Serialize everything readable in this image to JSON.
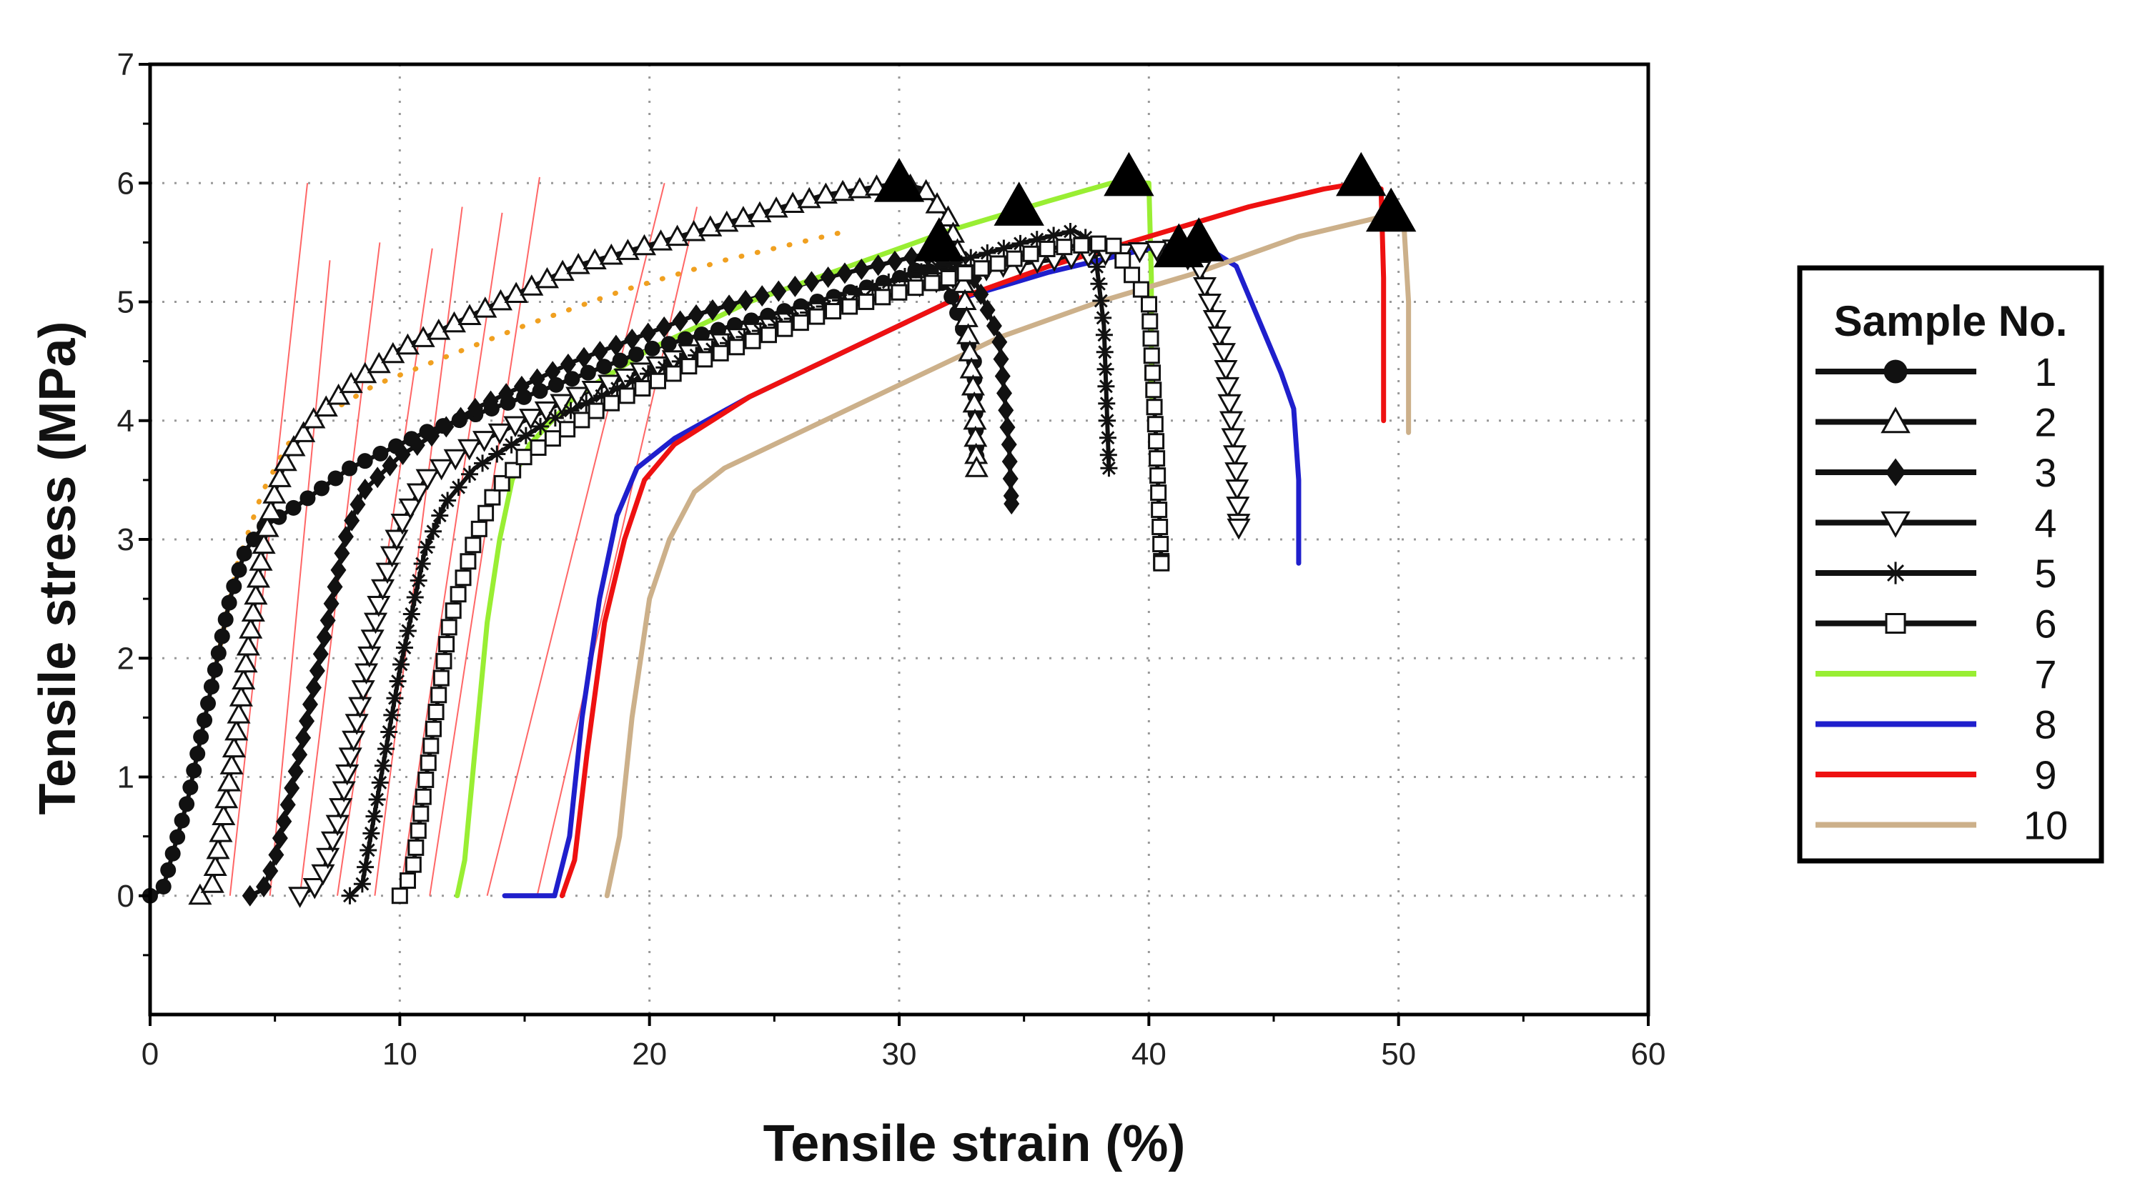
{
  "chart_data": {
    "type": "line",
    "title": "",
    "xlabel": "Tensile strain (%)",
    "ylabel": "Tensile stress (MPa)",
    "xlim": [
      0,
      60
    ],
    "ylim": [
      -1,
      7
    ],
    "xticks": [
      0,
      10,
      20,
      30,
      40,
      50,
      60
    ],
    "yticks": [
      0,
      1,
      2,
      3,
      4,
      5,
      6,
      7
    ],
    "grid": true,
    "legend": {
      "title": "Sample No.",
      "position": "right"
    },
    "series": [
      {
        "name": "1",
        "color": "#111111",
        "marker": "circle",
        "x": [
          0,
          0.5,
          1.5,
          2.5,
          3.2,
          3.8,
          4.5,
          6,
          8,
          11,
          15,
          20,
          25,
          30,
          31,
          32,
          33,
          33.1
        ],
        "y": [
          0,
          0.05,
          0.8,
          1.8,
          2.5,
          2.9,
          3.1,
          3.3,
          3.6,
          3.9,
          4.2,
          4.6,
          4.9,
          5.2,
          5.3,
          5.1,
          4.5,
          3.7
        ]
      },
      {
        "name": "2",
        "color": "#111111",
        "marker": "triangle-up-open",
        "x": [
          2,
          2.5,
          3.2,
          4.0,
          4.5,
          5.0,
          5.5,
          6.5,
          8,
          10,
          13,
          17,
          22,
          27,
          30,
          31,
          32,
          32.5,
          33,
          33.1
        ],
        "y": [
          0,
          0.1,
          1.0,
          2.2,
          2.9,
          3.4,
          3.7,
          4.0,
          4.3,
          4.6,
          4.9,
          5.3,
          5.6,
          5.9,
          6.0,
          5.95,
          5.7,
          5.3,
          4.2,
          3.6
        ]
      },
      {
        "name": "3",
        "color": "#111111",
        "marker": "diamond",
        "x": [
          4,
          4.5,
          5.0,
          6.0,
          7.0,
          7.8,
          8.5,
          10,
          13,
          17,
          22,
          27,
          31,
          33,
          34,
          34.4,
          34.5
        ],
        "y": [
          0,
          0.05,
          0.3,
          1.2,
          2.2,
          3.0,
          3.4,
          3.7,
          4.1,
          4.5,
          4.9,
          5.2,
          5.4,
          5.2,
          4.7,
          3.8,
          3.3
        ]
      },
      {
        "name": "4",
        "color": "#111111",
        "marker": "triangle-down-open",
        "x": [
          6,
          6.8,
          7.5,
          8.5,
          9.2,
          10,
          11,
          13,
          17,
          22,
          28,
          34,
          38,
          41,
          42,
          43,
          43.5,
          43.6
        ],
        "y": [
          0,
          0.1,
          0.6,
          1.7,
          2.5,
          3.1,
          3.5,
          3.8,
          4.2,
          4.6,
          5.0,
          5.3,
          5.4,
          5.45,
          5.3,
          4.6,
          3.6,
          3.1
        ]
      },
      {
        "name": "5",
        "color": "#111111",
        "marker": "star",
        "x": [
          8,
          8.5,
          9.0,
          10,
          11,
          11.8,
          13,
          16,
          20,
          25,
          30,
          35,
          37,
          37.8,
          38.2,
          38.4
        ],
        "y": [
          0,
          0.1,
          0.7,
          1.9,
          2.9,
          3.3,
          3.6,
          4.0,
          4.4,
          4.8,
          5.2,
          5.5,
          5.6,
          5.5,
          4.8,
          3.6
        ]
      },
      {
        "name": "6",
        "color": "#111111",
        "marker": "square-open",
        "x": [
          10,
          10.5,
          11.2,
          12,
          13,
          13.8,
          15,
          18,
          22,
          27,
          32,
          36,
          38.5,
          40,
          40.3,
          40.5
        ],
        "y": [
          0,
          0.2,
          1.2,
          2.3,
          3.0,
          3.4,
          3.7,
          4.1,
          4.5,
          4.9,
          5.2,
          5.45,
          5.5,
          5.0,
          3.8,
          2.8
        ]
      },
      {
        "name": "7",
        "color": "#99ee33",
        "marker": "none",
        "x": [
          12.3,
          12.6,
          13.0,
          13.5,
          14.0,
          14.5,
          15.2,
          17,
          20,
          24,
          28,
          32,
          36,
          38.5,
          39.2,
          40,
          40.1,
          40.1
        ],
        "y": [
          0,
          0.3,
          1.2,
          2.3,
          3.0,
          3.5,
          3.8,
          4.2,
          4.6,
          5.0,
          5.3,
          5.6,
          5.85,
          6.0,
          6.0,
          6.0,
          5.2,
          4.2
        ]
      },
      {
        "name": "8",
        "color": "#1f1fcc",
        "marker": "none",
        "x": [
          14.2,
          16.2,
          16.8,
          17.3,
          18.0,
          18.7,
          19.5,
          21,
          24,
          28,
          32,
          36,
          40,
          42,
          43.5,
          44.5,
          45.3,
          45.8,
          46,
          46
        ],
        "y": [
          0,
          0,
          0.5,
          1.5,
          2.5,
          3.2,
          3.6,
          3.85,
          4.2,
          4.6,
          5.0,
          5.25,
          5.45,
          5.5,
          5.3,
          4.8,
          4.4,
          4.1,
          3.5,
          2.8
        ]
      },
      {
        "name": "9",
        "color": "#ee1111",
        "marker": "none",
        "x": [
          16.5,
          17.0,
          17.5,
          18.2,
          19.0,
          19.8,
          21,
          24,
          28,
          32,
          36,
          40,
          44,
          47,
          48.4,
          49.3,
          49.4,
          49.4
        ],
        "y": [
          0,
          0.3,
          1.2,
          2.3,
          3.0,
          3.5,
          3.8,
          4.2,
          4.6,
          5.0,
          5.3,
          5.55,
          5.8,
          5.95,
          6.0,
          5.95,
          5.2,
          4.0
        ]
      },
      {
        "name": "10",
        "color": "#ccb08a",
        "marker": "none",
        "x": [
          18.3,
          18.8,
          19.3,
          20.0,
          20.8,
          21.8,
          23,
          26,
          30,
          34,
          38,
          42,
          46,
          49,
          49.8,
          50.2,
          50.4,
          50.4
        ],
        "y": [
          0,
          0.5,
          1.5,
          2.5,
          3.0,
          3.4,
          3.6,
          3.9,
          4.3,
          4.7,
          5.0,
          5.25,
          5.55,
          5.7,
          5.75,
          5.7,
          5.0,
          3.9
        ]
      }
    ],
    "annotations": [
      {
        "name": "orange-dotted-envelope",
        "color": "#f0a020",
        "style": "dotted",
        "x": [
          0.5,
          1.5,
          2.5,
          3.5,
          4.5,
          5.5,
          7,
          9,
          12,
          15,
          19,
          23,
          27,
          28
        ],
        "y": [
          0.1,
          0.8,
          1.8,
          2.8,
          3.4,
          3.8,
          4.05,
          4.3,
          4.55,
          4.8,
          5.1,
          5.35,
          5.55,
          5.6
        ]
      },
      {
        "name": "thin-red-tangent-lines",
        "color": "#ff6666",
        "lines": [
          {
            "x": [
              3.2,
              6.3
            ],
            "y": [
              0,
              6.0
            ]
          },
          {
            "x": [
              4.8,
              7.2
            ],
            "y": [
              0,
              5.35
            ]
          },
          {
            "x": [
              6.0,
              9.2
            ],
            "y": [
              0,
              5.5
            ]
          },
          {
            "x": [
              7.5,
              11.3
            ],
            "y": [
              0,
              5.45
            ]
          },
          {
            "x": [
              9.0,
              12.5
            ],
            "y": [
              0,
              5.8
            ]
          },
          {
            "x": [
              10.0,
              14.1
            ],
            "y": [
              0,
              5.75
            ]
          },
          {
            "x": [
              11.2,
              15.6
            ],
            "y": [
              0,
              6.05
            ]
          },
          {
            "x": [
              13.5,
              20.6
            ],
            "y": [
              0,
              6.0
            ]
          },
          {
            "x": [
              15.5,
              21.9
            ],
            "y": [
              0,
              5.8
            ]
          }
        ]
      },
      {
        "name": "failure-markers",
        "marker": "triangle-up-filled",
        "color": "#000000",
        "points": [
          {
            "x": 30,
            "y": 6.0
          },
          {
            "x": 31.6,
            "y": 5.5
          },
          {
            "x": 34.8,
            "y": 5.8
          },
          {
            "x": 39.2,
            "y": 6.05
          },
          {
            "x": 41.2,
            "y": 5.45
          },
          {
            "x": 42.0,
            "y": 5.5
          },
          {
            "x": 48.5,
            "y": 6.05
          },
          {
            "x": 49.7,
            "y": 5.75
          }
        ]
      }
    ]
  }
}
